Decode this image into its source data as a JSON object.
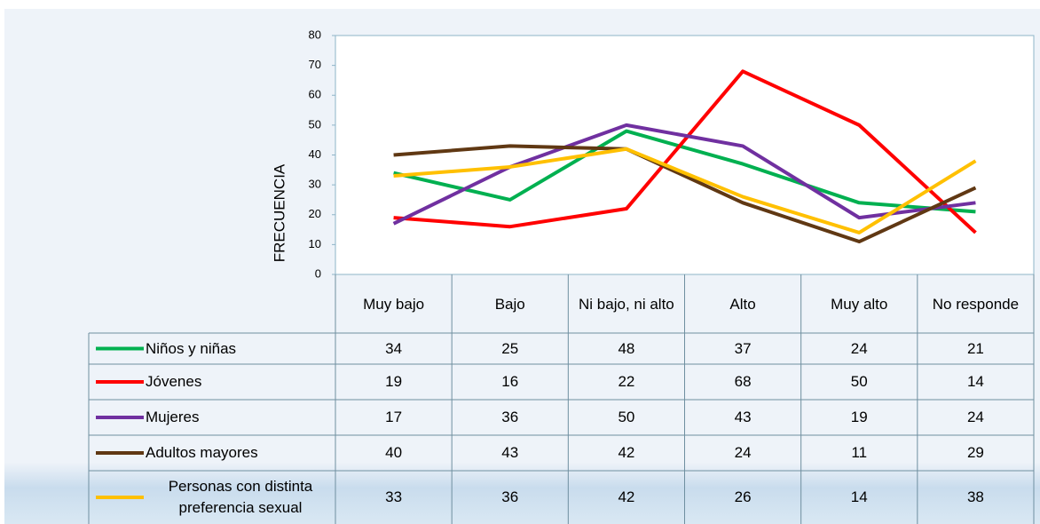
{
  "chart_data": {
    "type": "line",
    "y_label": "FRECUENCIA",
    "categories": [
      "Muy bajo",
      "Bajo",
      "Ni bajo, ni alto",
      "Alto",
      "Muy alto",
      "No responde"
    ],
    "series": [
      {
        "name": "Niños  y niñas",
        "color": "#00b050",
        "values": [
          34,
          25,
          48,
          37,
          24,
          21
        ]
      },
      {
        "name": "Jóvenes",
        "color": "#ff0000",
        "values": [
          19,
          16,
          22,
          68,
          50,
          14
        ]
      },
      {
        "name": "Mujeres",
        "color": "#7030a0",
        "values": [
          17,
          36,
          50,
          43,
          19,
          24
        ]
      },
      {
        "name": "Adultos mayores",
        "color": "#603813",
        "values": [
          40,
          43,
          42,
          24,
          11,
          29
        ]
      },
      {
        "name": "Personas con distinta preferencia sexual",
        "color": "#ffc000",
        "values": [
          33,
          36,
          42,
          26,
          14,
          38
        ]
      }
    ],
    "ylim": [
      0,
      80
    ],
    "yticks": [
      0,
      10,
      20,
      30,
      40,
      50,
      60,
      70,
      80
    ],
    "grid": false
  }
}
